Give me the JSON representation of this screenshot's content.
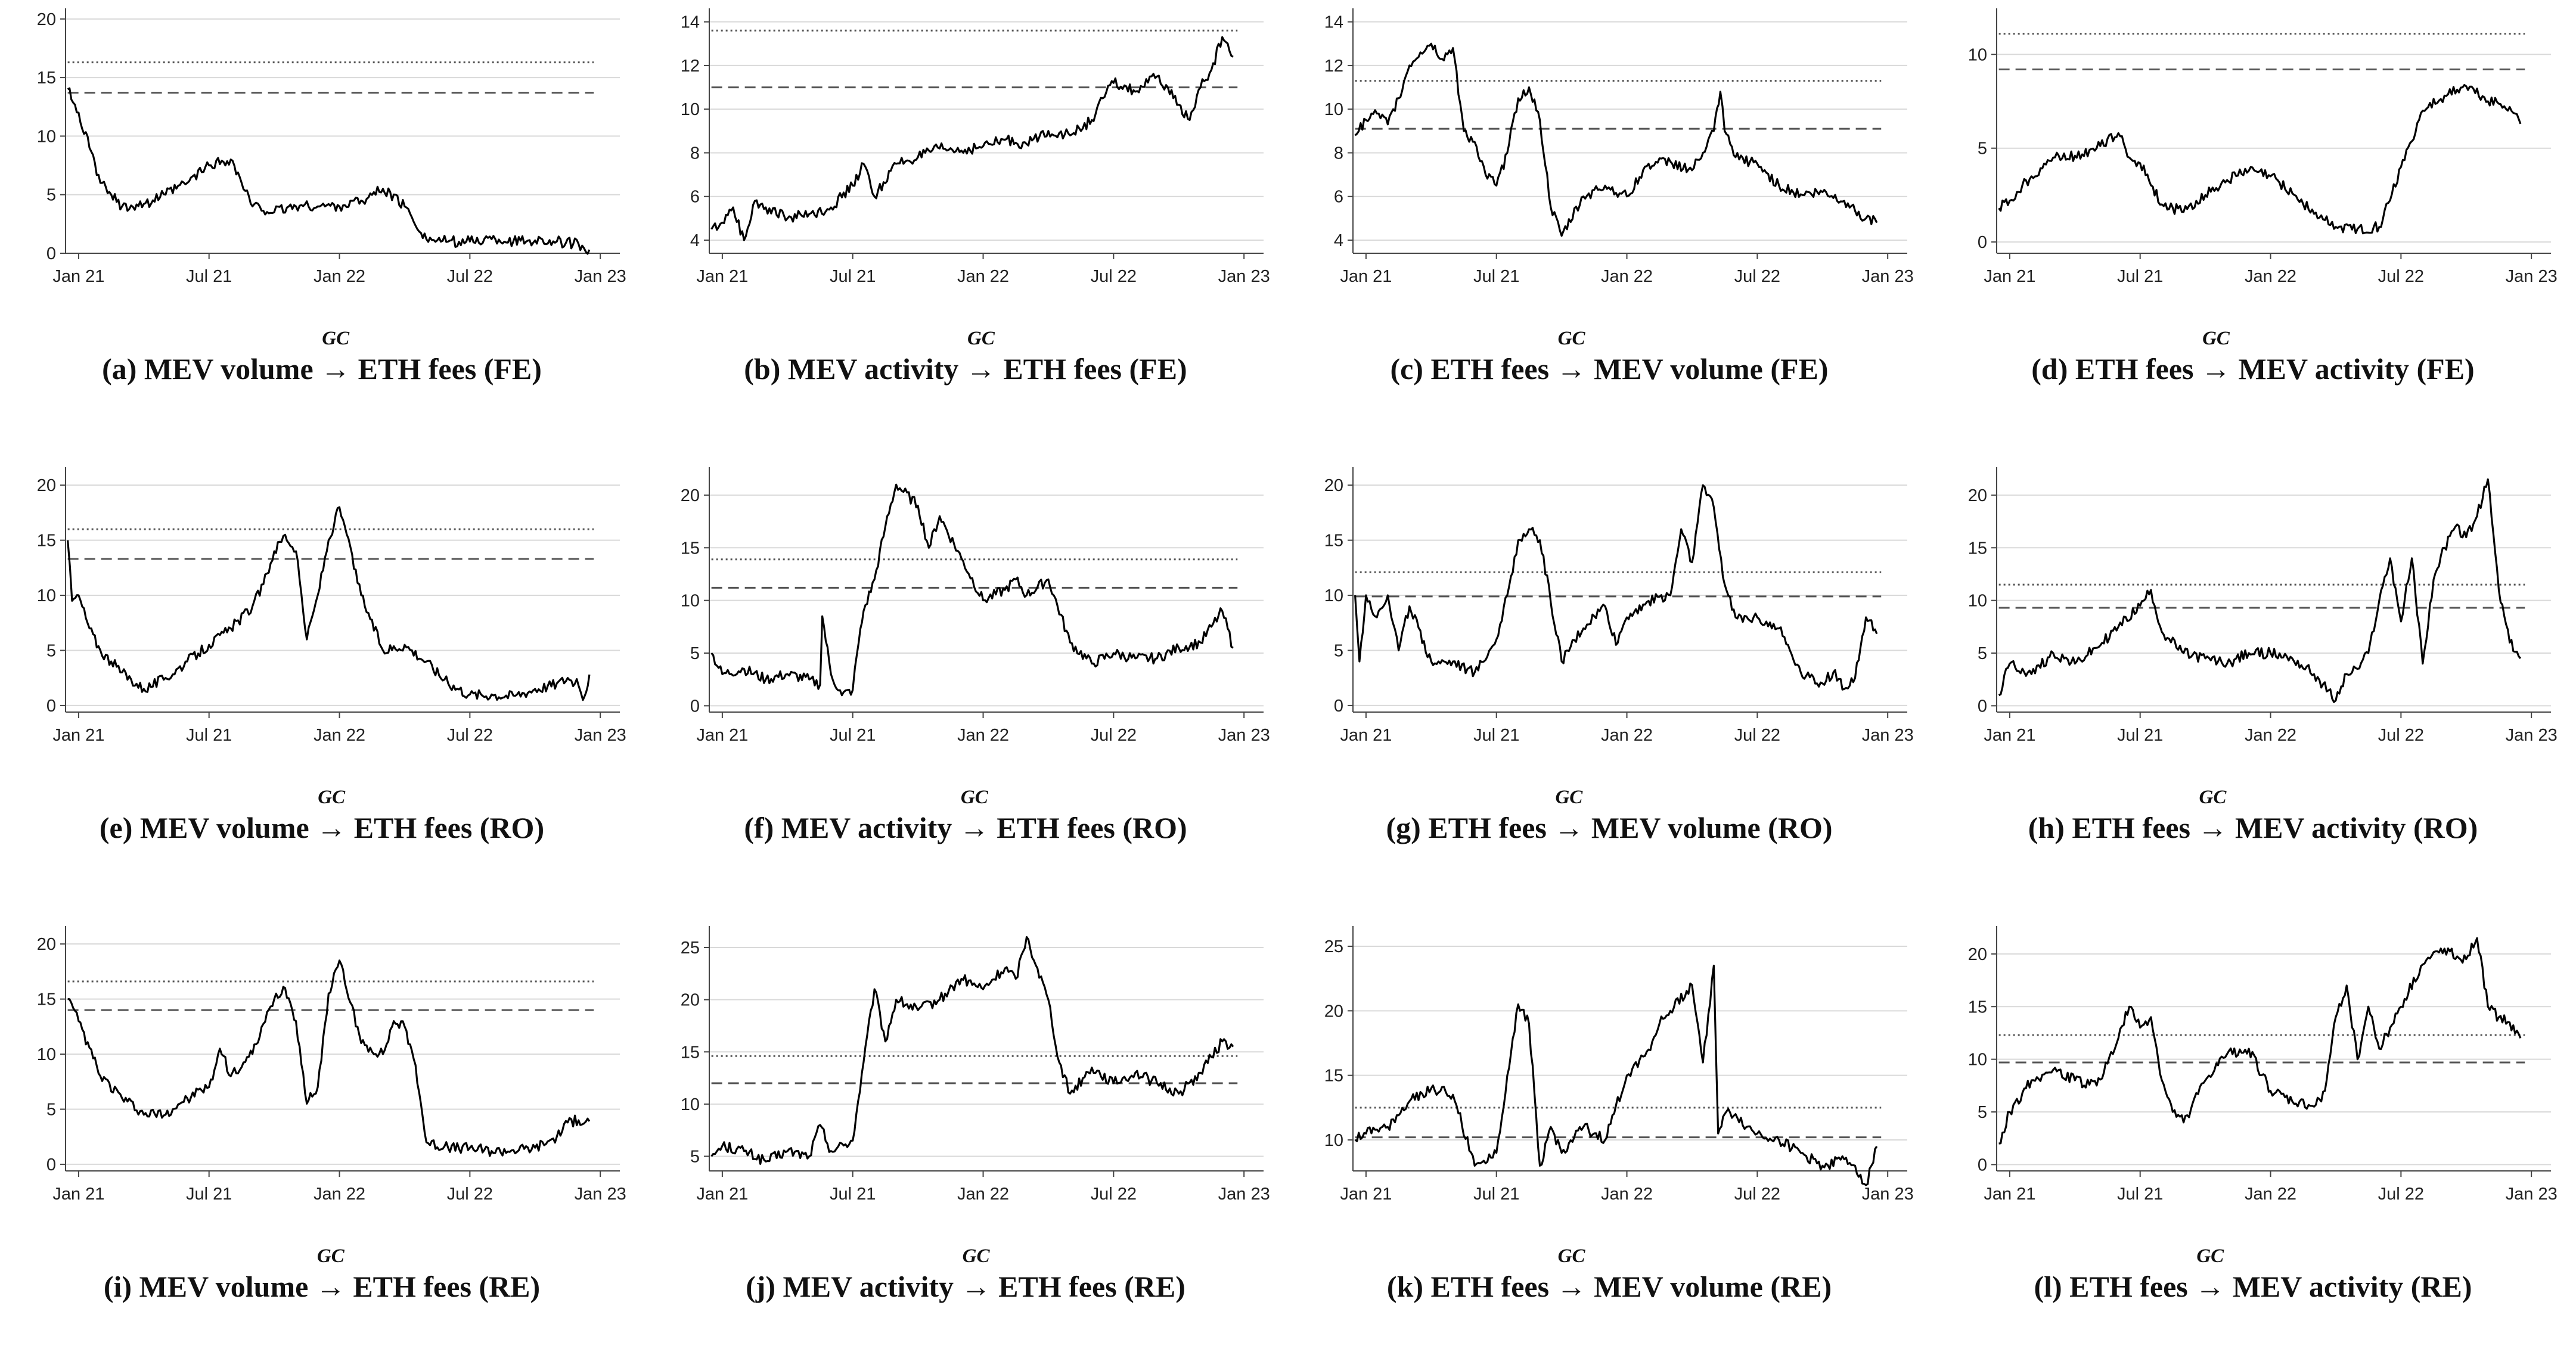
{
  "figure": {
    "gc_label": "GC",
    "arrow": "→",
    "style": {
      "line_color": "#000000",
      "grid_color": "#d9d9d9",
      "threshold_color": "#555555",
      "background": "#ffffff"
    },
    "threshold_styles": [
      "dotted",
      "dashed"
    ]
  },
  "chart_data": [
    {
      "panel": "a",
      "type": "line",
      "caption": {
        "prefix": "(a) MEV volume",
        "suffix": "ETH fees (FE)"
      },
      "xticks": [
        "Jan 21",
        "Jul 21",
        "Jan 22",
        "Jul 22",
        "Jan 23"
      ],
      "xlim": [
        -0.6,
        24.9
      ],
      "yticks": [
        0,
        5,
        10,
        15,
        20
      ],
      "ylim": [
        0,
        20.5
      ],
      "thresholds": [
        16.3,
        13.7
      ],
      "series": {
        "x": [
          -0.5,
          0,
          0.5,
          1,
          1.5,
          2,
          3,
          4,
          5,
          6,
          7,
          7.5,
          8,
          9,
          10,
          11,
          12,
          13,
          14,
          15,
          16,
          16.5,
          17,
          18,
          19,
          20,
          21,
          22,
          23,
          23.5
        ],
        "y": [
          14,
          12,
          9,
          6,
          5,
          4,
          4.2,
          5,
          6,
          7.5,
          8,
          6,
          4,
          3.5,
          4,
          4,
          4,
          4.5,
          5.5,
          4,
          1.2,
          1.1,
          1,
          1,
          1.2,
          1,
          1.1,
          1,
          0.8,
          0.3
        ]
      }
    },
    {
      "panel": "b",
      "type": "line",
      "caption": {
        "prefix": "(b) MEV activity",
        "suffix": "ETH fees (FE)"
      },
      "xticks": [
        "Jan 21",
        "Jul 21",
        "Jan 22",
        "Jul 22",
        "Jan 23"
      ],
      "xlim": [
        -0.6,
        24.9
      ],
      "yticks": [
        4,
        6,
        8,
        10,
        12,
        14
      ],
      "ylim": [
        3.4,
        14.4
      ],
      "thresholds": [
        13.6,
        11.0
      ],
      "series": {
        "x": [
          -0.5,
          0,
          0.5,
          1,
          1.5,
          2,
          3,
          4,
          5,
          6,
          6.5,
          7,
          8,
          9,
          10,
          11,
          12,
          13,
          14,
          15,
          16,
          17,
          17.5,
          18,
          19,
          20,
          21,
          21.5,
          22,
          22.5,
          23,
          23.5
        ],
        "y": [
          4.5,
          4.8,
          5.5,
          4,
          5.8,
          5.5,
          5,
          5.2,
          5.5,
          6.5,
          7.5,
          6,
          7.5,
          7.8,
          8.2,
          8.1,
          8.3,
          8.6,
          8.4,
          9,
          8.8,
          9.5,
          10.5,
          11.2,
          10.8,
          11.5,
          10.2,
          9.5,
          11,
          11.8,
          13.3,
          12.4
        ]
      }
    },
    {
      "panel": "c",
      "type": "line",
      "caption": {
        "prefix": "(c) ETH fees",
        "suffix": "MEV volume (FE)"
      },
      "xticks": [
        "Jan 21",
        "Jul 21",
        "Jan 22",
        "Jul 22",
        "Jan 23"
      ],
      "xlim": [
        -0.6,
        24.9
      ],
      "yticks": [
        4,
        6,
        8,
        10,
        12,
        14
      ],
      "ylim": [
        3.4,
        14.4
      ],
      "thresholds": [
        11.3,
        9.1
      ],
      "series": {
        "x": [
          -0.5,
          0,
          0.5,
          1,
          1.5,
          2,
          2.5,
          3,
          3.5,
          4,
          4.5,
          5,
          5.5,
          6,
          6.5,
          7,
          7.5,
          8,
          8.5,
          9,
          10,
          11,
          12,
          13,
          14,
          15,
          15.5,
          16,
          16.3,
          16.5,
          17,
          18,
          19,
          20,
          21,
          22,
          23,
          23.5
        ],
        "y": [
          8.8,
          9.5,
          9.8,
          9.3,
          10.5,
          12,
          12.6,
          13,
          12.3,
          12.8,
          9,
          8.5,
          7,
          6.5,
          8,
          10.5,
          11,
          9.5,
          5.5,
          4.2,
          6,
          6.5,
          6,
          7.5,
          7.6,
          7.2,
          8,
          9,
          10.8,
          9,
          7.8,
          7.5,
          6.5,
          6.1,
          6.2,
          5.8,
          5,
          4.8
        ]
      }
    },
    {
      "panel": "d",
      "type": "line",
      "caption": {
        "prefix": "(d) ETH fees",
        "suffix": "MEV activity (FE)"
      },
      "xticks": [
        "Jan 21",
        "Jul 21",
        "Jan 22",
        "Jul 22",
        "Jan 23"
      ],
      "xlim": [
        -0.6,
        24.9
      ],
      "yticks": [
        0,
        5,
        10
      ],
      "ylim": [
        -0.6,
        12.2
      ],
      "thresholds": [
        11.1,
        9.2
      ],
      "series": {
        "x": [
          -0.5,
          0,
          1,
          2,
          3,
          4,
          5,
          5.5,
          6,
          7,
          8,
          9,
          10,
          11,
          12,
          13,
          14,
          15,
          16,
          17,
          18,
          19,
          20,
          21,
          22,
          23,
          23.5
        ],
        "y": [
          1.8,
          2.2,
          3.5,
          4.5,
          4.6,
          5,
          5.8,
          4.5,
          4.2,
          2,
          1.6,
          2.5,
          3.3,
          3.8,
          3.5,
          2.6,
          1.5,
          0.8,
          0.7,
          0.8,
          4,
          7,
          7.8,
          8.3,
          7.5,
          7.2,
          6.3
        ]
      }
    },
    {
      "panel": "e",
      "type": "line",
      "caption": {
        "prefix": "(e) MEV volume",
        "suffix": "ETH fees (RO)"
      },
      "xticks": [
        "Jan 21",
        "Jul 21",
        "Jan 22",
        "Jul 22",
        "Jan 23"
      ],
      "xlim": [
        -0.6,
        24.9
      ],
      "yticks": [
        0,
        5,
        10,
        15,
        20
      ],
      "ylim": [
        -0.6,
        21.2
      ],
      "thresholds": [
        16.0,
        13.3
      ],
      "series": {
        "x": [
          -0.5,
          -0.3,
          0,
          0.5,
          1,
          1.5,
          2,
          3,
          4,
          5,
          6,
          7,
          8,
          8.5,
          9,
          9.5,
          10,
          10.5,
          11,
          11.5,
          12,
          13,
          14,
          15,
          16,
          17,
          18,
          19,
          20,
          21,
          22,
          22.5,
          23,
          23.2,
          23.5
        ],
        "y": [
          15,
          9.5,
          10,
          7,
          5,
          4,
          3,
          1.5,
          2.5,
          4,
          5.5,
          7,
          9,
          11,
          14,
          15.5,
          14,
          6,
          10,
          15,
          18,
          10,
          5,
          5.5,
          4,
          2,
          1,
          1,
          0.9,
          1.5,
          2,
          2.5,
          1.8,
          0.5,
          2.8
        ]
      }
    },
    {
      "panel": "f",
      "type": "line",
      "caption": {
        "prefix": "(f) MEV activity",
        "suffix": "ETH fees (RO)"
      },
      "xticks": [
        "Jan 21",
        "Jul 21",
        "Jan 22",
        "Jul 22",
        "Jan 23"
      ],
      "xlim": [
        -0.6,
        24.9
      ],
      "yticks": [
        0,
        5,
        10,
        15,
        20
      ],
      "ylim": [
        -0.6,
        22.2
      ],
      "thresholds": [
        13.9,
        11.2
      ],
      "series": {
        "x": [
          -0.5,
          0,
          1,
          2,
          3,
          4,
          4.5,
          4.6,
          5,
          5.5,
          6,
          6.2,
          6.5,
          7,
          7.5,
          8,
          9,
          9.5,
          10,
          11,
          12,
          13,
          13.5,
          14,
          15,
          16,
          17,
          18,
          19,
          20,
          21,
          22,
          22.5,
          23,
          23.5
        ],
        "y": [
          5,
          3,
          3.5,
          2.5,
          3,
          2.5,
          2,
          8.5,
          3,
          1,
          1.5,
          5,
          9,
          12,
          17,
          21,
          19,
          15,
          18,
          14,
          10,
          11,
          12,
          10.5,
          12,
          6,
          4,
          5,
          4.5,
          4.5,
          5.5,
          6,
          7.5,
          9,
          5.5
        ]
      }
    },
    {
      "panel": "g",
      "type": "line",
      "caption": {
        "prefix": "(g) ETH fees",
        "suffix": "MEV volume (RO)"
      },
      "xticks": [
        "Jan 21",
        "Jul 21",
        "Jan 22",
        "Jul 22",
        "Jan 23"
      ],
      "xlim": [
        -0.6,
        24.9
      ],
      "yticks": [
        0,
        5,
        10,
        15,
        20
      ],
      "ylim": [
        -0.6,
        21.2
      ],
      "thresholds": [
        12.1,
        9.9
      ],
      "series": {
        "x": [
          -0.5,
          -0.3,
          0,
          0.5,
          1,
          1.5,
          2,
          3,
          4,
          5,
          6,
          6.5,
          7,
          7.5,
          8,
          9,
          10,
          11,
          11.5,
          12,
          13,
          14,
          14.5,
          15,
          15.5,
          16,
          16.5,
          17,
          18,
          19,
          20,
          21,
          21.5,
          22,
          22.5,
          23,
          23.5
        ],
        "y": [
          10,
          4,
          10,
          8,
          10,
          5,
          9,
          4,
          4,
          3,
          6,
          10,
          15,
          16,
          15,
          4,
          7,
          9,
          5.5,
          8,
          9.5,
          10,
          16,
          13,
          20,
          18,
          11,
          8,
          8,
          7,
          3,
          2,
          3,
          1.5,
          2.5,
          8,
          6.5
        ]
      }
    },
    {
      "panel": "h",
      "type": "line",
      "caption": {
        "prefix": "(h) ETH fees",
        "suffix": "MEV activity (RO)"
      },
      "xticks": [
        "Jan 21",
        "Jul 21",
        "Jan 22",
        "Jul 22",
        "Jan 23"
      ],
      "xlim": [
        -0.6,
        24.9
      ],
      "yticks": [
        0,
        5,
        10,
        15,
        20
      ],
      "ylim": [
        -0.6,
        22.2
      ],
      "thresholds": [
        11.5,
        9.3
      ],
      "series": {
        "x": [
          -0.5,
          0,
          1,
          2,
          3,
          4,
          5,
          6,
          6.5,
          7,
          8,
          9,
          10,
          11,
          12,
          13,
          14,
          15,
          15.5,
          16,
          16.5,
          17,
          17.5,
          18,
          18.5,
          19,
          19.5,
          20,
          20.5,
          21,
          21.5,
          22,
          22.5,
          23,
          23.5
        ],
        "y": [
          1,
          4,
          3,
          5,
          4,
          5.5,
          7.5,
          9.5,
          11,
          7,
          5,
          4.5,
          4,
          5,
          5,
          4.5,
          3,
          0.5,
          3,
          3.5,
          5,
          10,
          14,
          8,
          14,
          4,
          12,
          15,
          17,
          16,
          18,
          21.5,
          11,
          6,
          4.5
        ]
      }
    },
    {
      "panel": "i",
      "type": "line",
      "caption": {
        "prefix": "(i) MEV volume",
        "suffix": "ETH fees (RE)"
      },
      "xticks": [
        "Jan 21",
        "Jul 21",
        "Jan 22",
        "Jul 22",
        "Jan 23"
      ],
      "xlim": [
        -0.6,
        24.9
      ],
      "yticks": [
        0,
        5,
        10,
        15,
        20
      ],
      "ylim": [
        -0.6,
        21.2
      ],
      "thresholds": [
        16.6,
        14.0
      ],
      "series": {
        "x": [
          -0.5,
          0,
          1,
          2,
          3,
          4,
          5,
          6,
          6.5,
          7,
          8,
          9,
          9.5,
          10,
          10.5,
          11,
          11.5,
          12,
          13,
          14,
          14.5,
          15,
          15.5,
          16,
          17,
          18,
          19,
          20,
          21,
          22,
          22.5,
          23,
          23.5
        ],
        "y": [
          15,
          13,
          8,
          6,
          4.5,
          4.5,
          6,
          7,
          10.5,
          8,
          10,
          15,
          16,
          13,
          5.5,
          7,
          15.5,
          18.5,
          11,
          10,
          13,
          12.5,
          9,
          2,
          1.5,
          1.5,
          1.2,
          1.3,
          1.5,
          2.5,
          3.8,
          4,
          3.9
        ]
      }
    },
    {
      "panel": "j",
      "type": "line",
      "caption": {
        "prefix": "(j) MEV activity",
        "suffix": "ETH fees (RE)"
      },
      "xticks": [
        "Jan 21",
        "Jul 21",
        "Jan 22",
        "Jul 22",
        "Jan 23"
      ],
      "xlim": [
        -0.6,
        24.9
      ],
      "yticks": [
        5,
        10,
        15,
        20,
        25
      ],
      "ylim": [
        3.6,
        26.6
      ],
      "thresholds": [
        14.6,
        12.0
      ],
      "series": {
        "x": [
          -0.5,
          0,
          1,
          2,
          3,
          4,
          4.5,
          5,
          6,
          6.5,
          7,
          7.5,
          8,
          9,
          10,
          11,
          12,
          13,
          13.5,
          14,
          14.5,
          15,
          15.5,
          16,
          17,
          18,
          19,
          20,
          21,
          22,
          22.5,
          23,
          23.5
        ],
        "y": [
          5,
          6,
          5.5,
          4.5,
          5.5,
          5,
          8,
          5.5,
          6.5,
          14,
          21,
          16,
          20,
          19,
          20,
          22,
          21,
          23,
          22,
          26,
          23,
          20,
          14,
          11,
          13.5,
          12,
          13,
          12,
          11,
          13,
          14.5,
          16,
          15.5
        ]
      }
    },
    {
      "panel": "k",
      "type": "line",
      "caption": {
        "prefix": "(k) ETH fees",
        "suffix": "MEV volume (RE)"
      },
      "xticks": [
        "Jan 21",
        "Jul 21",
        "Jan 22",
        "Jul 22",
        "Jan 23"
      ],
      "xlim": [
        -0.6,
        24.9
      ],
      "yticks": [
        10,
        15,
        20,
        25
      ],
      "ylim": [
        7.6,
        26.2
      ],
      "thresholds": [
        12.5,
        10.2
      ],
      "series": {
        "x": [
          -0.5,
          0,
          1,
          2,
          3,
          4,
          5,
          6,
          6.5,
          7,
          7.5,
          8,
          8.5,
          9,
          10,
          11,
          12,
          13,
          13.5,
          14,
          15,
          15.5,
          16,
          16.2,
          16.5,
          17,
          17.5,
          18,
          19,
          20,
          21,
          22,
          22.5,
          23,
          23.5
        ],
        "y": [
          10,
          10.5,
          11,
          13,
          14,
          13.5,
          8,
          9,
          15,
          20.5,
          19,
          8,
          11,
          9,
          11,
          10,
          15,
          17,
          19,
          20,
          22,
          16,
          23.5,
          10.5,
          12,
          12,
          11,
          10.5,
          10,
          9,
          8,
          8.5,
          8,
          6.5,
          9.5
        ]
      }
    },
    {
      "panel": "l",
      "type": "line",
      "caption": {
        "prefix": "(l) ETH fees",
        "suffix": "MEV activity (RE)"
      },
      "xticks": [
        "Jan 21",
        "Jul 21",
        "Jan 22",
        "Jul 22",
        "Jan 23"
      ],
      "xlim": [
        -0.6,
        24.9
      ],
      "yticks": [
        0,
        5,
        10,
        15,
        20
      ],
      "ylim": [
        -0.6,
        22.2
      ],
      "thresholds": [
        12.3,
        9.7
      ],
      "series": {
        "x": [
          -0.5,
          0,
          1,
          2,
          3,
          4,
          5,
          5.5,
          6,
          6.5,
          7,
          7.5,
          8,
          9,
          10,
          11,
          12,
          13,
          14,
          14.5,
          15,
          15.5,
          16,
          16.5,
          17,
          17.5,
          18,
          19,
          20,
          21,
          21.5,
          22,
          22.5,
          23,
          23.5
        ],
        "y": [
          2,
          5,
          8,
          9,
          8,
          7.5,
          12,
          15,
          13,
          14,
          8,
          5,
          4,
          8,
          10.5,
          11,
          7,
          6,
          5.5,
          7,
          14,
          17,
          10,
          15,
          11,
          13,
          15,
          19,
          20.5,
          19.5,
          21.5,
          15,
          14,
          13.5,
          12
        ]
      }
    }
  ]
}
